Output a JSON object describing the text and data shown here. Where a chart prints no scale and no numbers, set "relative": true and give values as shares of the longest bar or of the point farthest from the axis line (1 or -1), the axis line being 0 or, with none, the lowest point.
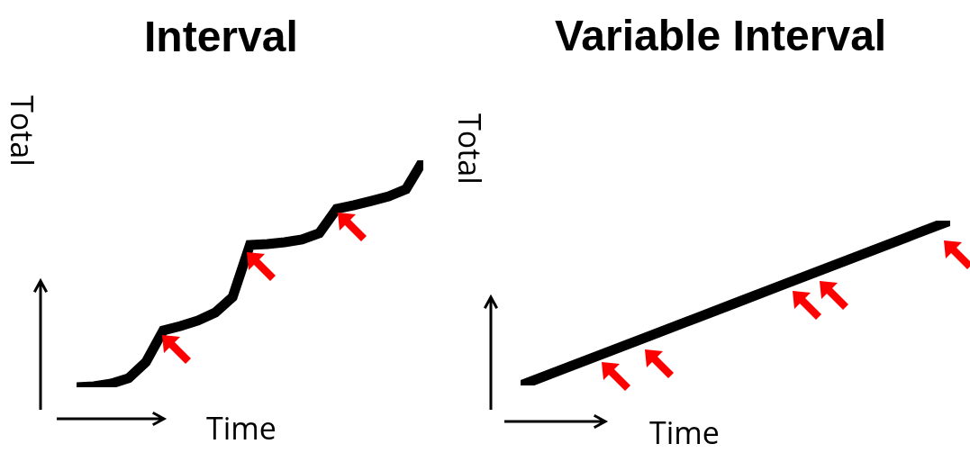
{
  "chart_data": [
    {
      "type": "line",
      "title": "Interval",
      "xlabel": "Time",
      "ylabel": "Total",
      "relative": true,
      "color": "#000000",
      "categories": [
        null,
        null,
        null,
        null,
        null,
        null,
        null,
        null,
        null,
        null,
        null,
        null,
        null,
        null,
        null,
        null,
        null,
        null,
        null,
        null,
        null
      ],
      "values": [
        0,
        0.004,
        0.016,
        0.04,
        0.111,
        0.25,
        0.27,
        0.294,
        0.329,
        0.397,
        0.627,
        0.631,
        0.639,
        0.651,
        0.679,
        0.786,
        0.802,
        0.821,
        0.841,
        0.873,
        1
      ]
    },
    {
      "type": "line",
      "title": "Variable Interval",
      "xlabel": "Time",
      "ylabel": "Total",
      "relative": true,
      "color": "#000000",
      "categories": [
        null,
        null,
        null,
        null,
        null,
        null,
        null,
        null,
        null,
        null,
        null
      ],
      "values": [
        0,
        0.1,
        0.2,
        0.3,
        0.4,
        0.5,
        0.6,
        0.7,
        0.8,
        0.9,
        1
      ]
    }
  ]
}
